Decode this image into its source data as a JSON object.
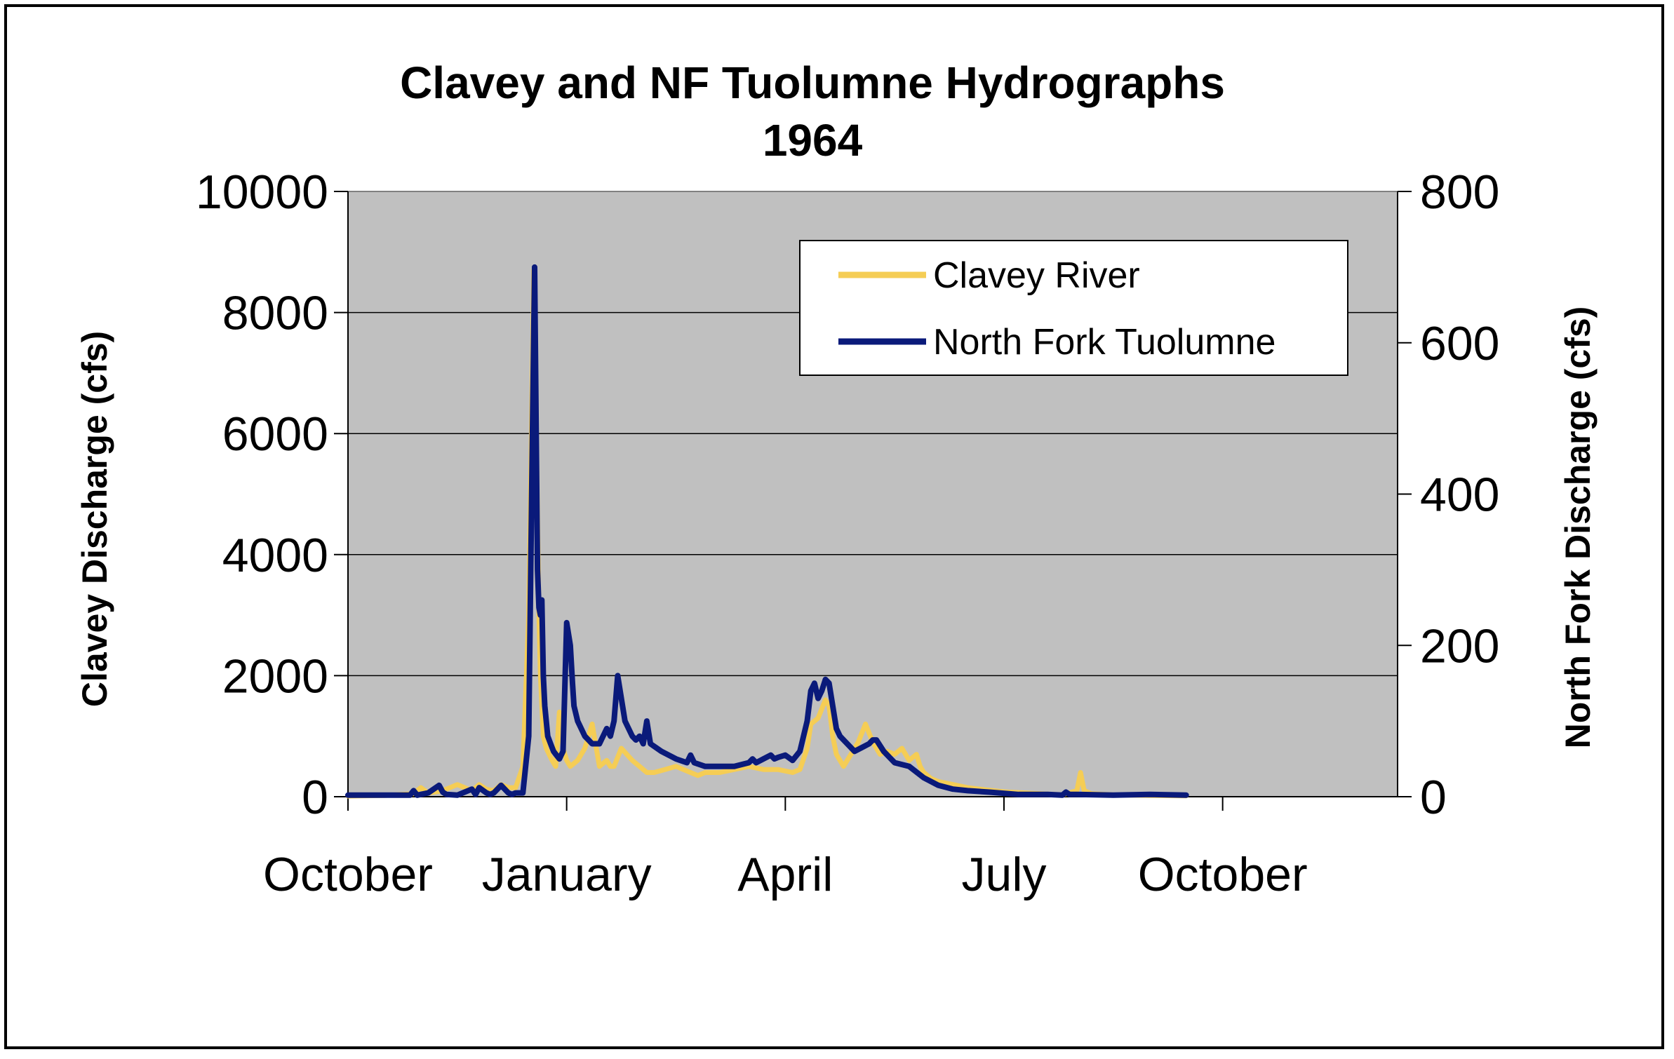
{
  "chart_data": {
    "type": "line",
    "title": "Clavey and NF Tuolumne Hydrographs",
    "subtitle": "1964",
    "x_tick_labels": [
      "October",
      "January",
      "April",
      "July",
      "October"
    ],
    "x_ticks_month_offset": [
      0,
      3,
      6,
      9,
      12
    ],
    "xlim_months": [
      0,
      14.4
    ],
    "ylabel_left": "Clavey Discharge (cfs)",
    "ylabel_right": "North Fork Discharge (cfs)",
    "ylim_left": [
      0,
      10000
    ],
    "yticks_left": [
      0,
      2000,
      4000,
      6000,
      8000,
      10000
    ],
    "ylim_right": [
      0,
      800
    ],
    "yticks_right": [
      0,
      200,
      400,
      600,
      800
    ],
    "grid": true,
    "legend_position": "top-right",
    "colors": {
      "plot_background": "#c0c0c0",
      "clavey": "#f5cd55",
      "north_fork": "#0a1a7a"
    },
    "series": [
      {
        "name": "Clavey River",
        "axis": "left",
        "x": [
          0,
          0.5,
          0.9,
          1.0,
          1.1,
          1.3,
          1.5,
          1.7,
          1.8,
          1.9,
          2.0,
          2.1,
          2.2,
          2.3,
          2.4,
          2.48,
          2.55,
          2.62,
          2.64,
          2.66,
          2.68,
          2.72,
          2.76,
          2.8,
          2.85,
          2.9,
          2.95,
          3.0,
          3.05,
          3.1,
          3.15,
          3.25,
          3.35,
          3.45,
          3.55,
          3.6,
          3.65,
          3.75,
          3.9,
          4.0,
          4.05,
          4.1,
          4.2,
          4.35,
          4.5,
          4.7,
          4.8,
          4.9,
          5.1,
          5.3,
          5.5,
          5.7,
          5.9,
          6.1,
          6.2,
          6.3,
          6.35,
          6.45,
          6.55,
          6.6,
          6.65,
          6.7,
          6.8,
          6.9,
          7.0,
          7.1,
          7.2,
          7.3,
          7.4,
          7.5,
          7.6,
          7.7,
          7.8,
          7.85,
          7.9,
          8.0,
          8.1,
          8.3,
          8.5,
          8.7,
          9.0,
          9.5,
          9.8,
          10.0,
          10.05,
          10.1,
          10.2,
          10.5,
          11.0,
          11.5
        ],
        "values": [
          10,
          20,
          50,
          150,
          60,
          100,
          200,
          100,
          200,
          120,
          100,
          200,
          150,
          150,
          500,
          3000,
          8700,
          3000,
          2000,
          1500,
          1000,
          800,
          700,
          600,
          500,
          1400,
          800,
          600,
          500,
          550,
          600,
          800,
          1200,
          500,
          600,
          500,
          500,
          800,
          600,
          500,
          450,
          400,
          400,
          450,
          500,
          400,
          350,
          400,
          400,
          450,
          500,
          450,
          450,
          400,
          450,
          800,
          1200,
          1300,
          1600,
          1500,
          1000,
          700,
          500,
          700,
          900,
          1200,
          900,
          700,
          750,
          700,
          800,
          600,
          700,
          500,
          400,
          300,
          250,
          200,
          150,
          120,
          80,
          50,
          30,
          100,
          400,
          100,
          50,
          30,
          20,
          15
        ]
      },
      {
        "name": "North Fork Tuolumne",
        "axis": "right",
        "x": [
          0,
          0.3,
          0.5,
          0.85,
          0.9,
          0.95,
          1.1,
          1.25,
          1.3,
          1.35,
          1.5,
          1.7,
          1.75,
          1.8,
          1.9,
          1.95,
          2.0,
          2.1,
          2.2,
          2.25,
          2.3,
          2.4,
          2.48,
          2.52,
          2.56,
          2.6,
          2.62,
          2.64,
          2.66,
          2.68,
          2.7,
          2.72,
          2.74,
          2.78,
          2.82,
          2.86,
          2.9,
          2.95,
          3.0,
          3.05,
          3.08,
          3.1,
          3.15,
          3.25,
          3.35,
          3.45,
          3.5,
          3.55,
          3.6,
          3.65,
          3.7,
          3.8,
          3.9,
          3.95,
          4.0,
          4.05,
          4.1,
          4.15,
          4.3,
          4.5,
          4.65,
          4.7,
          4.75,
          4.9,
          5.1,
          5.3,
          5.5,
          5.55,
          5.6,
          5.7,
          5.8,
          5.85,
          5.9,
          6.0,
          6.1,
          6.2,
          6.25,
          6.3,
          6.35,
          6.4,
          6.45,
          6.5,
          6.55,
          6.6,
          6.65,
          6.7,
          6.75,
          6.85,
          6.95,
          7.05,
          7.15,
          7.2,
          7.25,
          7.35,
          7.5,
          7.7,
          7.9,
          8.1,
          8.3,
          8.5,
          8.8,
          9.2,
          9.6,
          9.8,
          9.85,
          9.9,
          10.0,
          10.5,
          11.0,
          11.5
        ],
        "values": [
          2,
          2,
          2,
          2,
          8,
          2,
          5,
          15,
          6,
          3,
          2,
          10,
          3,
          12,
          5,
          3,
          5,
          15,
          5,
          3,
          5,
          5,
          80,
          400,
          700,
          300,
          250,
          240,
          260,
          160,
          120,
          100,
          80,
          70,
          60,
          55,
          50,
          60,
          230,
          200,
          150,
          120,
          100,
          80,
          70,
          70,
          80,
          90,
          80,
          100,
          160,
          100,
          80,
          75,
          80,
          70,
          100,
          70,
          60,
          50,
          45,
          55,
          45,
          40,
          40,
          40,
          45,
          50,
          45,
          50,
          55,
          50,
          52,
          55,
          48,
          60,
          80,
          100,
          140,
          150,
          130,
          140,
          155,
          150,
          120,
          90,
          80,
          70,
          60,
          65,
          70,
          75,
          75,
          60,
          45,
          40,
          25,
          15,
          10,
          8,
          6,
          3,
          3,
          2,
          6,
          3,
          3,
          2,
          3,
          2
        ]
      }
    ]
  }
}
